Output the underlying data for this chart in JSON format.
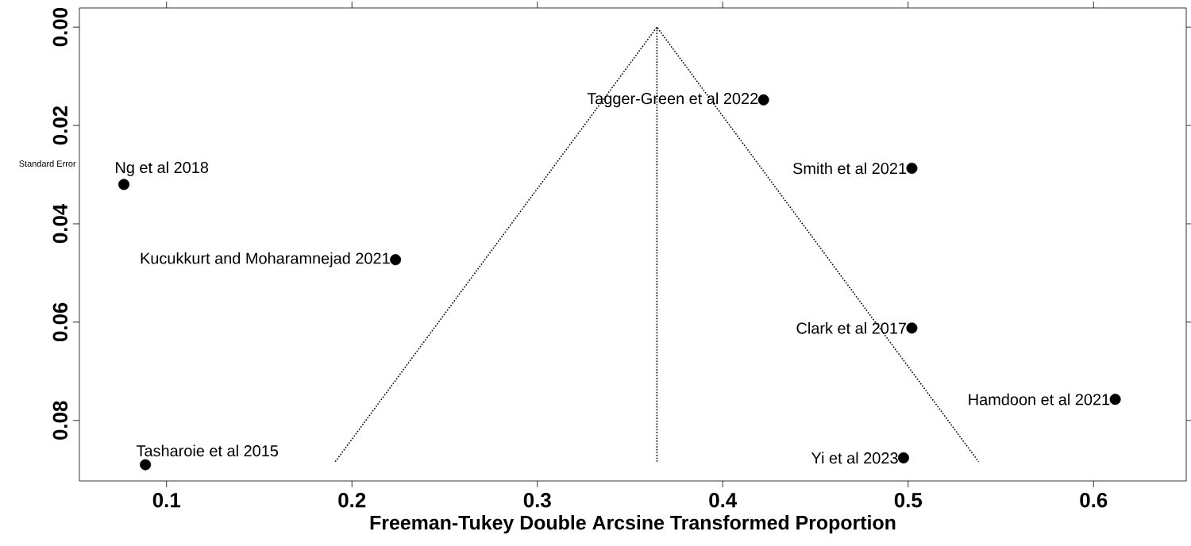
{
  "chart_data": {
    "type": "scatter",
    "xlabel": "Freeman-Tukey Double Arcsine Transformed Proportion",
    "ylabel": "Standard Error",
    "xlim": [
      0.053,
      0.65
    ],
    "ylim": [
      0.0923,
      -0.0039
    ],
    "xticks": [
      0.1,
      0.2,
      0.3,
      0.4,
      0.5,
      0.6
    ],
    "yticks": [
      {
        "value": 0,
        "label": "0.00"
      },
      {
        "value": 0.02,
        "label": "0.02"
      },
      {
        "value": 0.04,
        "label": "0.04"
      },
      {
        "value": 0.06,
        "label": "0.06"
      },
      {
        "value": 0.08,
        "label": "0.08"
      }
    ],
    "grid": false,
    "marker": "circle",
    "series": [
      {
        "type": "scatter",
        "color": "#000000",
        "x": [
          0.077,
          0.2235,
          0.0886,
          0.422,
          0.502,
          0.502,
          0.6117,
          0.4975
        ],
        "values": [
          0.032,
          0.0473,
          0.089,
          0.0148,
          0.0287,
          0.0612,
          0.0757,
          0.0876
        ]
      },
      {
        "type": "line",
        "color": "#000000",
        "line_style": "dotted",
        "marker": "none",
        "x": [
          0.191,
          0.3645,
          0.538
        ],
        "values": [
          0.0884,
          0,
          0.0884
        ]
      },
      {
        "type": "line",
        "color": "#000000",
        "line_style": "dotted",
        "marker": "none",
        "x": [
          0.3645,
          0.3645
        ],
        "values": [
          0,
          0.0884
        ]
      }
    ],
    "annotations": [
      {
        "text": "Ng et al 2018",
        "x": 0.077,
        "y": 0.032
      },
      {
        "text": "Kucukkurt and Moharamnejad 2021",
        "x": 0.2235,
        "y": 0.0473
      },
      {
        "text": "Tasharoie et al 2015",
        "x": 0.0886,
        "y": 0.089
      },
      {
        "text": "Tagger-Green et al 2022",
        "x": 0.422,
        "y": 0.0148
      },
      {
        "text": "Smith et al 2021",
        "x": 0.502,
        "y": 0.0287
      },
      {
        "text": "Clark et al 2017",
        "x": 0.502,
        "y": 0.0612
      },
      {
        "text": "Hamdoon et al 2021",
        "x": 0.6117,
        "y": 0.0757
      },
      {
        "text": "Yi et al 2023",
        "x": 0.4975,
        "y": 0.0876
      }
    ]
  }
}
